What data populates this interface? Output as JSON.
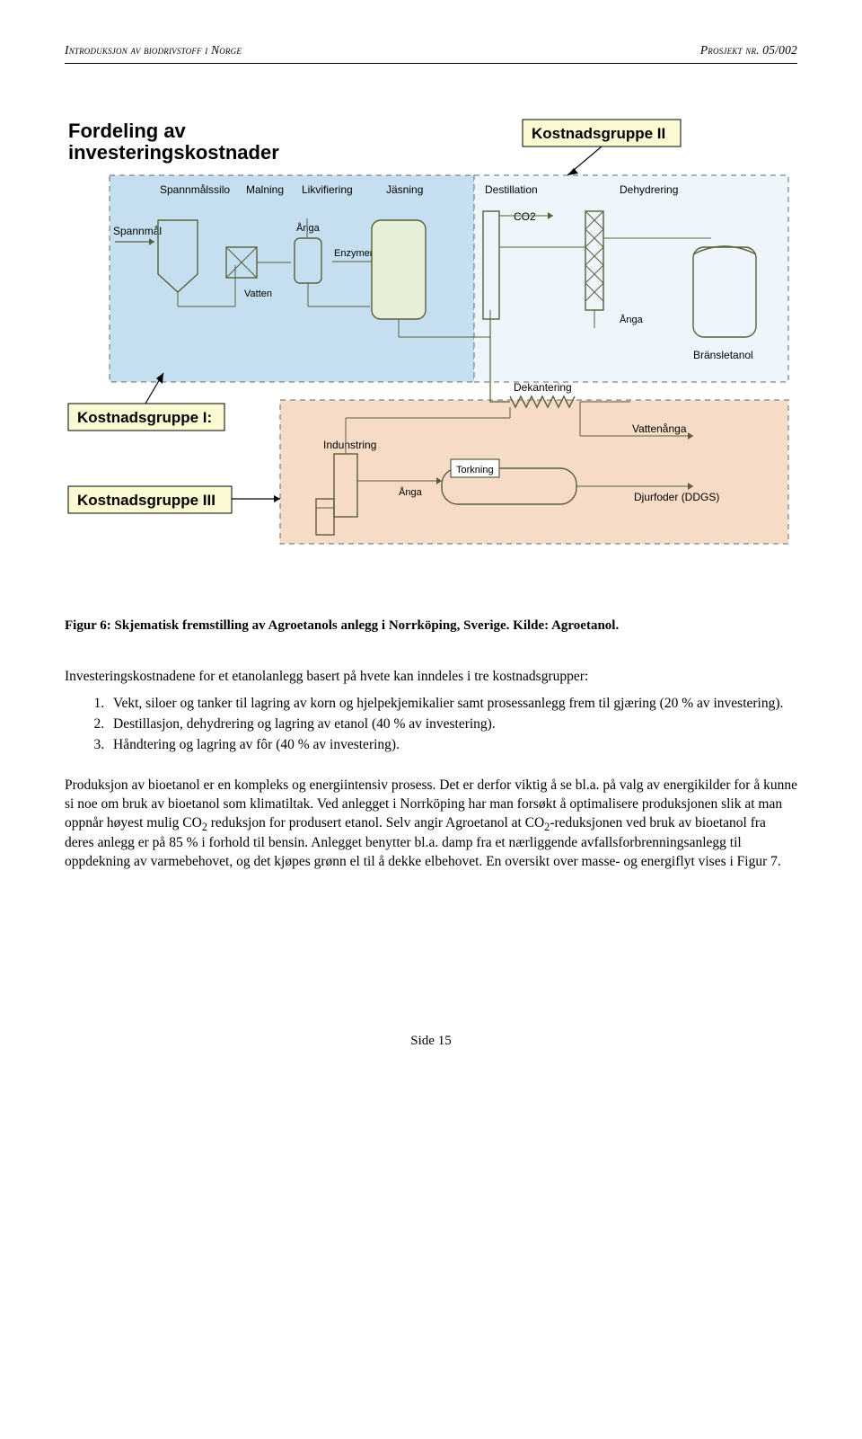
{
  "header": {
    "left": "Introduksjon av biodrivstoff i Norge",
    "right": "Prosjekt nr. 05/002"
  },
  "diagram": {
    "title": "Fordeling av investeringskostnader",
    "groupI_label": "Kostnadsgruppe I:",
    "groupII_label": "Kostnadsgruppe II",
    "groupIII_label": "Kostnadsgruppe III",
    "colors": {
      "groupI_bg": "#c6dff0",
      "groupII_bg": "#eef6fb",
      "groupIII_bg": "#f6dbc6",
      "label_box_bg": "#fcfad2",
      "label_box_border": "#000000",
      "dash": "#5a6a7a",
      "equip_stroke": "#5a5f3a",
      "arrow": "#000000"
    },
    "process_labels": {
      "spannmal": "Spannmål",
      "silo": "Spannmålssilo",
      "malning": "Malning",
      "likvifiering": "Likvifiering",
      "jasning": "Jäsning",
      "anga": "Ånga",
      "vatten": "Vatten",
      "enzymer": "Enzymer",
      "destillation": "Destillation",
      "co2": "CO2",
      "dehydrering": "Dehydrering",
      "bransletanol": "Bränsletanol",
      "dekantering": "Dekantering",
      "indunstring": "Indunstring",
      "torkning": "Torkning",
      "vattenanga": "Vattenånga",
      "djurfoder": "Djurfoder (DDGS)"
    }
  },
  "caption": "Figur 6: Skjematisk fremstilling av Agroetanols anlegg i Norrköping, Sverige. Kilde: Agroetanol.",
  "intro": "Investeringskostnadene for et etanolanlegg basert på hvete kan inndeles i tre kostnadsgrupper:",
  "list": [
    "Vekt, siloer og tanker til lagring av korn og hjelpekjemikalier samt prosessanlegg frem til gjæring (20 % av investering).",
    "Destillasjon, dehydrering og lagring av etanol (40 % av investering).",
    "Håndtering og lagring av fôr (40 % av investering)."
  ],
  "body": "Produksjon av bioetanol er en kompleks og energiintensiv prosess. Det er derfor viktig å se bl.a. på valg av energikilder for å kunne si noe om bruk av bioetanol som klimatiltak. Ved anlegget i Norrköping har man forsøkt å optimalisere produksjonen slik at man oppnår høyest mulig CO{2} reduksjon for produsert etanol. Selv angir Agroetanol at CO{2}-reduksjonen ved bruk av bioetanol fra deres anlegg er på 85 % i forhold til bensin. Anlegget benytter bl.a. damp fra et nærliggende avfallsforbrenningsanlegg til oppdekning av varmebehovet, og det kjøpes grønn el til å dekke elbehovet. En oversikt over masse- og energiflyt vises i Figur 7.",
  "footer": "Side 15"
}
